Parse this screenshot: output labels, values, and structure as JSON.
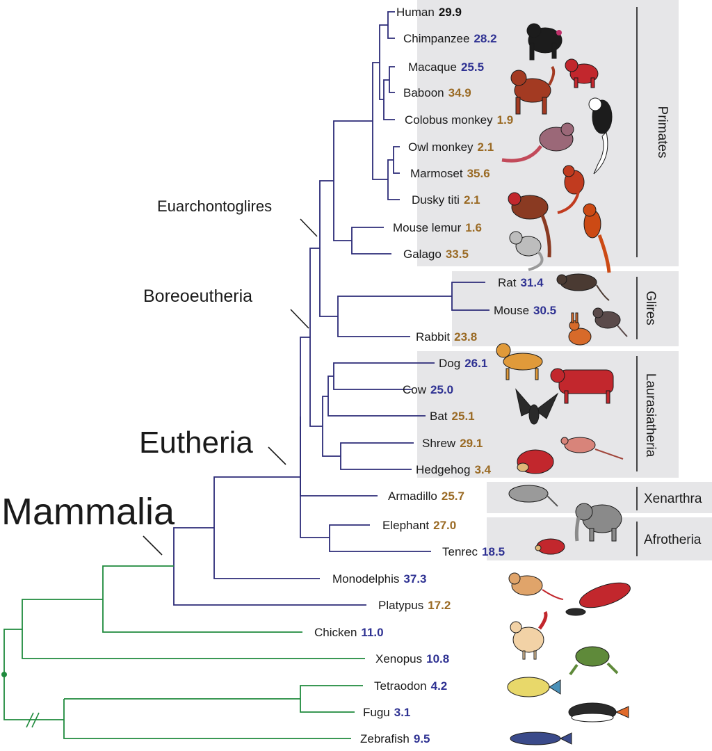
{
  "colors": {
    "mammal_branch": "#2c2b78",
    "outgroup_branch": "#1f8a3c",
    "value_blue": "#2e3192",
    "value_brown": "#9a6a24",
    "value_black": "#111111",
    "group_panel": "#e6e6e8"
  },
  "taxa": [
    {
      "name": "Human",
      "value": "29.9",
      "value_color": "black",
      "icon": "human-icon"
    },
    {
      "name": "Chimpanzee",
      "value": "28.2",
      "value_color": "blue",
      "icon": "chimpanzee-icon"
    },
    {
      "name": "Macaque",
      "value": "25.5",
      "value_color": "blue",
      "icon": "macaque-icon"
    },
    {
      "name": "Baboon",
      "value": "34.9",
      "value_color": "brown",
      "icon": "baboon-icon"
    },
    {
      "name": "Colobus monkey",
      "value": "1.9",
      "value_color": "brown",
      "icon": "colobus-icon"
    },
    {
      "name": "Owl monkey",
      "value": "2.1",
      "value_color": "brown",
      "icon": "owl-monkey-icon"
    },
    {
      "name": "Marmoset",
      "value": "35.6",
      "value_color": "brown",
      "icon": "marmoset-icon"
    },
    {
      "name": "Dusky titi",
      "value": "2.1",
      "value_color": "brown",
      "icon": "titi-icon"
    },
    {
      "name": "Mouse lemur",
      "value": "1.6",
      "value_color": "brown",
      "icon": "mouse-lemur-icon"
    },
    {
      "name": "Galago",
      "value": "33.5",
      "value_color": "brown",
      "icon": "galago-icon"
    },
    {
      "name": "Rat",
      "value": "31.4",
      "value_color": "blue",
      "icon": "rat-icon"
    },
    {
      "name": "Mouse",
      "value": "30.5",
      "value_color": "blue",
      "icon": "mouse-icon"
    },
    {
      "name": "Rabbit",
      "value": "23.8",
      "value_color": "brown",
      "icon": "rabbit-icon"
    },
    {
      "name": "Dog",
      "value": "26.1",
      "value_color": "blue",
      "icon": "dog-icon"
    },
    {
      "name": "Cow",
      "value": "25.0",
      "value_color": "blue",
      "icon": "cow-icon"
    },
    {
      "name": "Bat",
      "value": "25.1",
      "value_color": "brown",
      "icon": "bat-icon"
    },
    {
      "name": "Shrew",
      "value": "29.1",
      "value_color": "brown",
      "icon": "shrew-icon"
    },
    {
      "name": "Hedgehog",
      "value": "3.4",
      "value_color": "brown",
      "icon": "hedgehog-icon"
    },
    {
      "name": "Armadillo",
      "value": "25.7",
      "value_color": "brown",
      "icon": "armadillo-icon"
    },
    {
      "name": "Elephant",
      "value": "27.0",
      "value_color": "brown",
      "icon": "elephant-icon"
    },
    {
      "name": "Tenrec",
      "value": "18.5",
      "value_color": "blue",
      "icon": "tenrec-icon"
    },
    {
      "name": "Monodelphis",
      "value": "37.3",
      "value_color": "blue",
      "icon": "opossum-icon"
    },
    {
      "name": "Platypus",
      "value": "17.2",
      "value_color": "brown",
      "icon": "platypus-icon"
    },
    {
      "name": "Chicken",
      "value": "11.0",
      "value_color": "blue",
      "icon": "chicken-icon"
    },
    {
      "name": "Xenopus",
      "value": "10.8",
      "value_color": "blue",
      "icon": "frog-icon"
    },
    {
      "name": "Tetraodon",
      "value": "4.2",
      "value_color": "blue",
      "icon": "pufferfish-icon"
    },
    {
      "name": "Fugu",
      "value": "3.1",
      "value_color": "blue",
      "icon": "fugu-icon"
    },
    {
      "name": "Zebrafish",
      "value": "9.5",
      "value_color": "blue",
      "icon": "zebrafish-icon"
    }
  ],
  "clades": {
    "euarchontoglires": "Euarchontoglires",
    "boreoeutheria": "Boreoeutheria",
    "eutheria": "Eutheria",
    "mammalia": "Mammalia"
  },
  "groups": {
    "primates": "Primates",
    "glires": "Glires",
    "laurasiatheria": "Laurasiatheria",
    "xenarthra": "Xenarthra",
    "afrotheria": "Afrotheria"
  }
}
